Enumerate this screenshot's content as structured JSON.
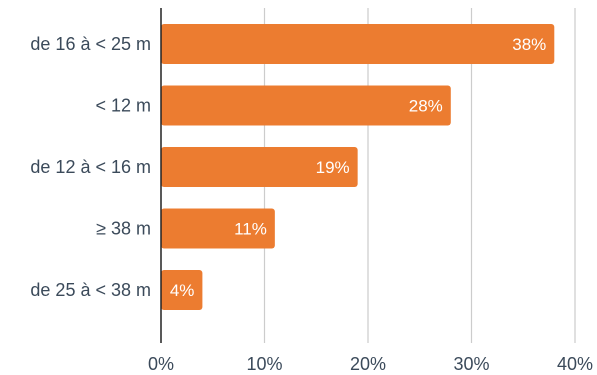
{
  "chart_data": {
    "type": "bar",
    "orientation": "horizontal",
    "categories": [
      "de 16 à < 25 m",
      "< 12 m",
      "de 12 à < 16 m",
      "≥ 38 m",
      "de 25 à < 38 m"
    ],
    "values": [
      38,
      28,
      19,
      11,
      4
    ],
    "value_labels": [
      "38%",
      "28%",
      "19%",
      "11%",
      "4%"
    ],
    "x_ticks": [
      0,
      10,
      20,
      30,
      40
    ],
    "x_tick_labels": [
      "0%",
      "10%",
      "20%",
      "30%",
      "40%"
    ],
    "xlim": [
      0,
      40
    ],
    "grid": true,
    "title": "",
    "xlabel": "",
    "ylabel": "",
    "colors": {
      "bar": "#ec7c30",
      "grid": "#cccccc",
      "axis": "#222222",
      "text": "#3b4a5a"
    }
  }
}
